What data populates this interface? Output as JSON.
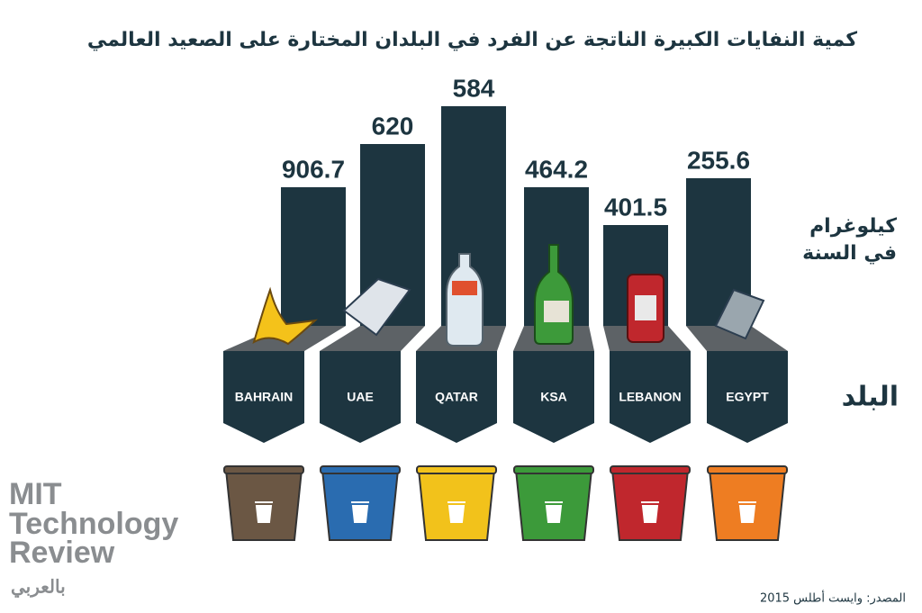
{
  "chart_data": {
    "type": "pictorial-bar",
    "title": "كمية النفايات الكبيرة الناتجة عن الفرد في البلدان المختارة على الصعيد العالمي",
    "unit_label": [
      "كيلوغرام",
      "في السنة"
    ],
    "category_label": "البلد",
    "categories": [
      "BAHRAIN",
      "UAE",
      "QATAR",
      "KSA",
      "LEBANON",
      "EGYPT"
    ],
    "values": [
      906.7,
      620,
      584,
      464.2,
      401.5,
      255.6
    ],
    "bar_color": "#1d3540",
    "bin_colors": [
      "#6b5744",
      "#2a6cb0",
      "#f2c21b",
      "#3c9a3a",
      "#c0272d",
      "#ee7d22"
    ],
    "source": "المصدر: وايست أطلس 2015"
  },
  "logo": {
    "lines": [
      "MIT",
      "Technology",
      "Review"
    ],
    "subtitle": "بالعربي"
  }
}
